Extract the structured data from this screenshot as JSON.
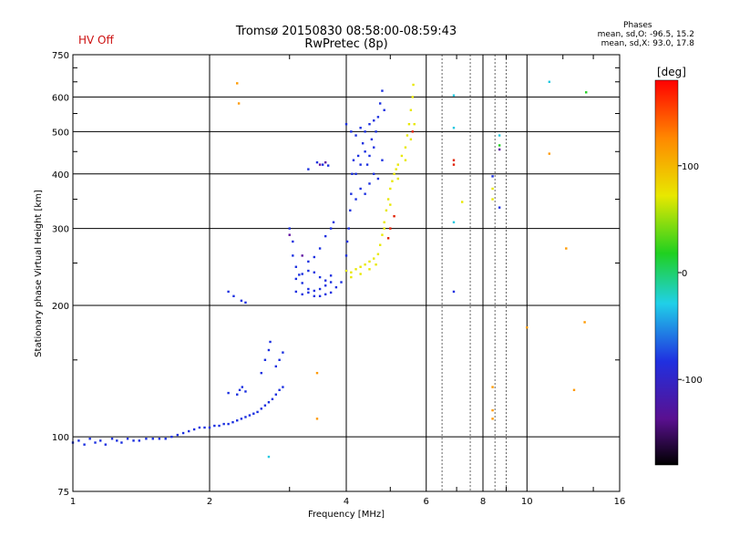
{
  "header": {
    "hv_status": "HV Off",
    "title": "Tromsø 20150830 08:58:00-08:59:43",
    "subtitle": "RwPretec (8p)"
  },
  "phases": {
    "heading": "Phases",
    "line_o": "mean, sd,O: -96.5, 15.2",
    "line_x": "mean, sd,X:  93.0, 17.8"
  },
  "colorbar": {
    "label": "[deg]",
    "ticks": [
      "100",
      "0",
      "-100"
    ],
    "tick_values": [
      100,
      0,
      -100
    ],
    "range": [
      -180,
      180
    ]
  },
  "chart_data": {
    "type": "scatter",
    "title": "Tromsø 20150830 08:58:00-08:59:43",
    "xlabel": "Frequency [MHz]",
    "ylabel": "Stationary phase Virtual Height [km]",
    "xscale": "log",
    "yscale": "log",
    "xlim": [
      1,
      16
    ],
    "ylim": [
      75,
      750
    ],
    "xticks": [
      1,
      2,
      4,
      6,
      8,
      10,
      16
    ],
    "xtick_labels": [
      "1",
      "2",
      "4",
      "6",
      "8",
      "10",
      "16"
    ],
    "yticks": [
      75,
      100,
      200,
      300,
      400,
      500,
      600,
      750
    ],
    "ytick_labels": [
      "75",
      "100",
      "200",
      "300",
      "400",
      "500",
      "600",
      "750"
    ],
    "grid": true,
    "series": [
      {
        "color": "#1a2fe0",
        "points": [
          [
            1.0,
            97
          ],
          [
            1.03,
            98
          ],
          [
            1.06,
            96
          ],
          [
            1.09,
            99
          ],
          [
            1.12,
            97
          ],
          [
            1.15,
            98
          ],
          [
            1.18,
            96
          ],
          [
            1.22,
            99
          ],
          [
            1.25,
            98
          ],
          [
            1.28,
            97
          ],
          [
            1.32,
            99
          ],
          [
            1.36,
            98
          ],
          [
            1.4,
            98
          ],
          [
            1.45,
            99
          ],
          [
            1.5,
            99
          ],
          [
            1.55,
            99
          ],
          [
            1.6,
            99
          ],
          [
            1.65,
            100
          ],
          [
            1.7,
            101
          ],
          [
            1.75,
            102
          ],
          [
            1.8,
            103
          ],
          [
            1.85,
            104
          ],
          [
            1.9,
            105
          ],
          [
            1.95,
            105
          ],
          [
            2.0,
            105
          ],
          [
            2.05,
            106
          ],
          [
            2.1,
            106
          ],
          [
            2.15,
            107
          ],
          [
            2.2,
            107
          ],
          [
            2.25,
            108
          ],
          [
            2.3,
            109
          ],
          [
            2.35,
            110
          ],
          [
            2.4,
            111
          ],
          [
            2.45,
            112
          ],
          [
            2.5,
            113
          ],
          [
            2.55,
            114
          ],
          [
            2.6,
            116
          ],
          [
            2.65,
            118
          ],
          [
            2.7,
            120
          ],
          [
            2.75,
            122
          ],
          [
            2.8,
            125
          ],
          [
            2.85,
            128
          ],
          [
            2.9,
            130
          ],
          [
            2.3,
            125
          ],
          [
            2.33,
            128
          ],
          [
            2.36,
            130
          ],
          [
            2.4,
            127
          ],
          [
            2.2,
            126
          ],
          [
            2.6,
            140
          ],
          [
            2.65,
            150
          ],
          [
            2.7,
            158
          ],
          [
            2.72,
            165
          ],
          [
            2.8,
            145
          ],
          [
            2.85,
            150
          ],
          [
            2.9,
            156
          ],
          [
            2.2,
            215
          ],
          [
            2.26,
            210
          ],
          [
            2.35,
            205
          ],
          [
            2.4,
            203
          ],
          [
            3.0,
            300
          ],
          [
            3.05,
            280
          ],
          [
            3.05,
            260
          ],
          [
            3.1,
            245
          ],
          [
            3.15,
            235
          ],
          [
            3.2,
            225
          ],
          [
            3.3,
            218
          ],
          [
            3.4,
            210
          ],
          [
            3.5,
            210
          ],
          [
            3.6,
            212
          ],
          [
            3.7,
            214
          ],
          [
            3.8,
            220
          ],
          [
            3.9,
            226
          ],
          [
            4.0,
            240
          ],
          [
            3.1,
            215
          ],
          [
            3.2,
            212
          ],
          [
            3.3,
            214
          ],
          [
            3.4,
            216
          ],
          [
            3.5,
            218
          ],
          [
            3.6,
            222
          ],
          [
            3.7,
            226
          ],
          [
            3.1,
            230
          ],
          [
            3.2,
            236
          ],
          [
            3.3,
            240
          ],
          [
            3.4,
            238
          ],
          [
            3.5,
            232
          ],
          [
            3.6,
            228
          ],
          [
            3.7,
            234
          ],
          [
            3.3,
            252
          ],
          [
            3.4,
            258
          ],
          [
            3.5,
            270
          ],
          [
            3.6,
            288
          ],
          [
            3.7,
            300
          ],
          [
            3.75,
            310
          ],
          [
            4.0,
            260
          ],
          [
            4.02,
            280
          ],
          [
            4.05,
            300
          ],
          [
            4.08,
            330
          ],
          [
            4.1,
            360
          ],
          [
            4.12,
            400
          ],
          [
            4.15,
            430
          ],
          [
            4.2,
            400
          ],
          [
            4.25,
            440
          ],
          [
            4.3,
            420
          ],
          [
            4.35,
            470
          ],
          [
            4.4,
            450
          ],
          [
            4.45,
            420
          ],
          [
            4.5,
            440
          ],
          [
            4.55,
            480
          ],
          [
            4.6,
            460
          ],
          [
            4.65,
            500
          ],
          [
            4.7,
            540
          ],
          [
            4.75,
            580
          ],
          [
            4.8,
            620
          ],
          [
            4.85,
            560
          ],
          [
            4.2,
            350
          ],
          [
            4.3,
            370
          ],
          [
            4.4,
            360
          ],
          [
            4.5,
            380
          ],
          [
            4.6,
            400
          ],
          [
            4.7,
            390
          ],
          [
            4.8,
            430
          ],
          [
            4.0,
            520
          ],
          [
            4.1,
            500
          ],
          [
            4.2,
            490
          ],
          [
            4.3,
            510
          ],
          [
            4.4,
            500
          ],
          [
            4.5,
            520
          ],
          [
            4.6,
            530
          ],
          [
            3.45,
            425
          ],
          [
            3.55,
            420
          ],
          [
            3.65,
            418
          ],
          [
            3.3,
            410
          ],
          [
            6.9,
            215
          ],
          [
            8.7,
            335
          ],
          [
            8.4,
            395
          ]
        ]
      },
      {
        "color": "#e8e800",
        "points": [
          [
            4.0,
            240
          ],
          [
            4.1,
            238
          ],
          [
            4.2,
            242
          ],
          [
            4.3,
            245
          ],
          [
            4.4,
            248
          ],
          [
            4.5,
            252
          ],
          [
            4.6,
            256
          ],
          [
            4.7,
            262
          ],
          [
            4.75,
            275
          ],
          [
            4.8,
            290
          ],
          [
            4.85,
            310
          ],
          [
            4.9,
            330
          ],
          [
            4.95,
            350
          ],
          [
            5.0,
            370
          ],
          [
            5.05,
            385
          ],
          [
            5.1,
            400
          ],
          [
            5.15,
            410
          ],
          [
            5.2,
            420
          ],
          [
            5.3,
            440
          ],
          [
            5.4,
            460
          ],
          [
            5.45,
            490
          ],
          [
            5.5,
            520
          ],
          [
            5.55,
            560
          ],
          [
            5.6,
            600
          ],
          [
            5.62,
            640
          ],
          [
            4.1,
            232
          ],
          [
            4.3,
            236
          ],
          [
            4.5,
            242
          ],
          [
            4.65,
            248
          ],
          [
            4.85,
            300
          ],
          [
            5.0,
            340
          ],
          [
            5.2,
            390
          ],
          [
            5.4,
            430
          ],
          [
            5.55,
            480
          ],
          [
            5.65,
            520
          ],
          [
            8.4,
            370
          ],
          [
            8.4,
            350
          ],
          [
            7.2,
            345
          ]
        ]
      },
      {
        "color": "#ff9a00",
        "points": [
          [
            2.3,
            645
          ],
          [
            2.32,
            580
          ],
          [
            3.45,
            140
          ],
          [
            3.45,
            110
          ],
          [
            8.4,
            130
          ],
          [
            8.4,
            115
          ],
          [
            8.4,
            110
          ],
          [
            10.0,
            178
          ],
          [
            11.2,
            445
          ],
          [
            12.2,
            270
          ],
          [
            12.7,
            128
          ],
          [
            13.4,
            183
          ]
        ]
      },
      {
        "color": "#e02000",
        "points": [
          [
            4.95,
            285
          ],
          [
            5.0,
            300
          ],
          [
            5.6,
            500
          ],
          [
            5.1,
            320
          ],
          [
            6.9,
            430
          ],
          [
            6.9,
            420
          ]
        ]
      },
      {
        "color": "#20c8e0",
        "points": [
          [
            6.9,
            605
          ],
          [
            6.9,
            510
          ],
          [
            6.9,
            310
          ],
          [
            8.7,
            490
          ],
          [
            11.2,
            650
          ],
          [
            2.7,
            90
          ]
        ]
      },
      {
        "color": "#20d020",
        "points": [
          [
            13.5,
            615
          ],
          [
            8.7,
            465
          ]
        ]
      },
      {
        "color": "#6010a0",
        "points": [
          [
            3.5,
            420
          ],
          [
            3.6,
            425
          ],
          [
            3.0,
            290
          ],
          [
            3.2,
            260
          ],
          [
            8.7,
            455
          ]
        ]
      }
    ]
  }
}
